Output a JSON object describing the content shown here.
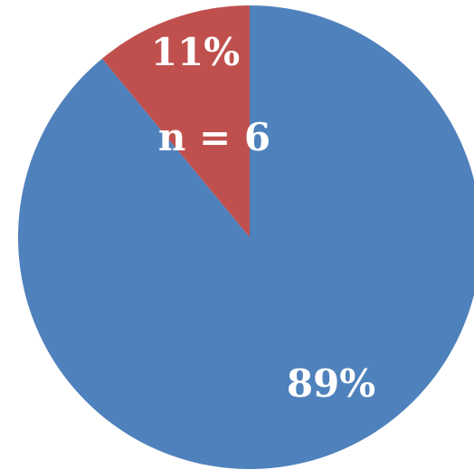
{
  "chart_data": {
    "type": "pie",
    "slices": [
      {
        "label": "89%",
        "value": 89,
        "color": "#4F81BD"
      },
      {
        "label": "11%",
        "value": 11,
        "color": "#C0504D"
      }
    ],
    "annotation": "n = 6",
    "start_angle_deg": 0,
    "direction": "counterclockwise",
    "legend": "none"
  }
}
